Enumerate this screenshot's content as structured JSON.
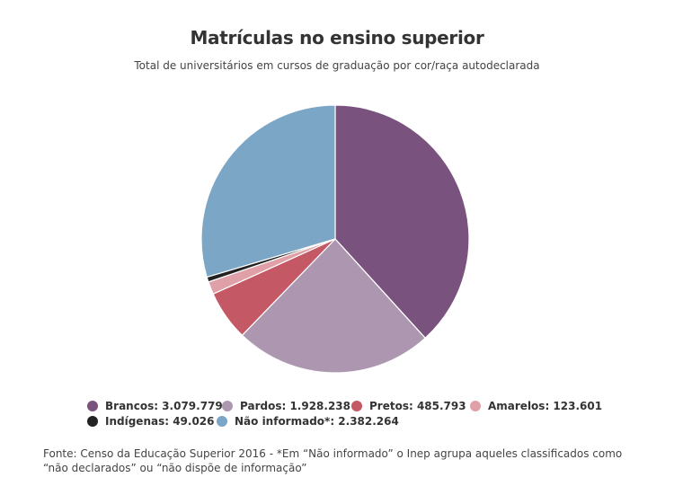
{
  "chart_data": {
    "type": "pie",
    "title": "Matrículas no ensino superior",
    "subtitle": "Total de universitários em cursos de graduação por cor/raça autodeclarada",
    "slices": [
      {
        "name": "Brancos",
        "value": 3079779,
        "label": "Brancos: 3.079.779",
        "color": "#7a527e"
      },
      {
        "name": "Pardos",
        "value": 1928238,
        "label": "Pardos: 1.928.238",
        "color": "#ad97b0"
      },
      {
        "name": "Pretos",
        "value": 485793,
        "label": "Pretos: 485.793",
        "color": "#c45865"
      },
      {
        "name": "Amarelos",
        "value": 123601,
        "label": "Amarelos: 123.601",
        "color": "#e0a0a8"
      },
      {
        "name": "Indígenas",
        "value": 49026,
        "label": "Indígenas: 49.026",
        "color": "#222222"
      },
      {
        "name": "Não informado*",
        "value": 2382264,
        "label": "Não informado*: 2.382.264",
        "color": "#7ba6c6"
      }
    ],
    "footnote": "Fonte: Censo da Educação Superior 2016 - *Em “Não informado” o Inep agrupa aqueles classificados como “não declarados” ou “não dispõe de informação”"
  }
}
